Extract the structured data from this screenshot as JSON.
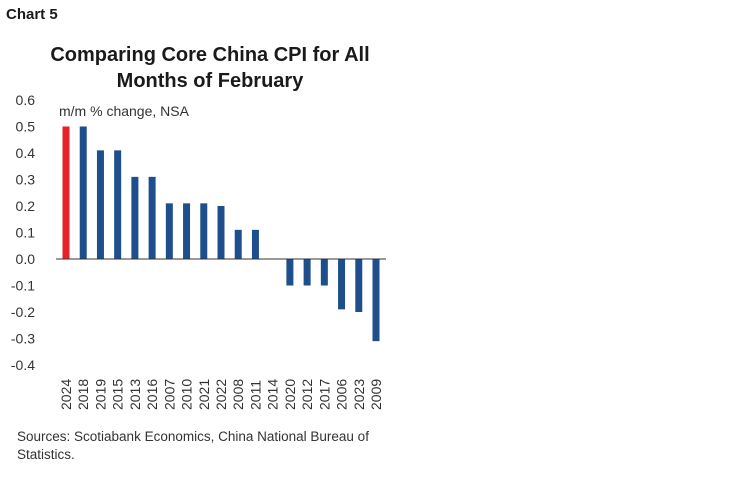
{
  "chart_label": "Chart 5",
  "source": "Sources: Scotiabank Economics, China National Bureau of Statistics.",
  "chart_data": {
    "type": "bar",
    "title": "Comparing Core China CPI for All Months of February",
    "ylabel": "m/m % change, NSA",
    "xlabel": "",
    "categories": [
      "2024",
      "2018",
      "2019",
      "2015",
      "2013",
      "2016",
      "2007",
      "2010",
      "2021",
      "2022",
      "2008",
      "2011",
      "2014",
      "2020",
      "2012",
      "2017",
      "2006",
      "2023",
      "2009"
    ],
    "values": [
      0.5,
      0.5,
      0.41,
      0.41,
      0.31,
      0.31,
      0.21,
      0.21,
      0.21,
      0.2,
      0.11,
      0.11,
      0.0,
      -0.1,
      -0.1,
      -0.1,
      -0.19,
      -0.2,
      -0.31
    ],
    "ylim": [
      -0.4,
      0.6
    ],
    "yticks": [
      "-0.4",
      "-0.3",
      "-0.2",
      "-0.1",
      "0.0",
      "0.1",
      "0.2",
      "0.3",
      "0.4",
      "0.5",
      "0.6"
    ],
    "grid": false,
    "colors": {
      "highlight": "#e8202a",
      "default": "#1f4e8c"
    },
    "highlight_index": 0
  }
}
